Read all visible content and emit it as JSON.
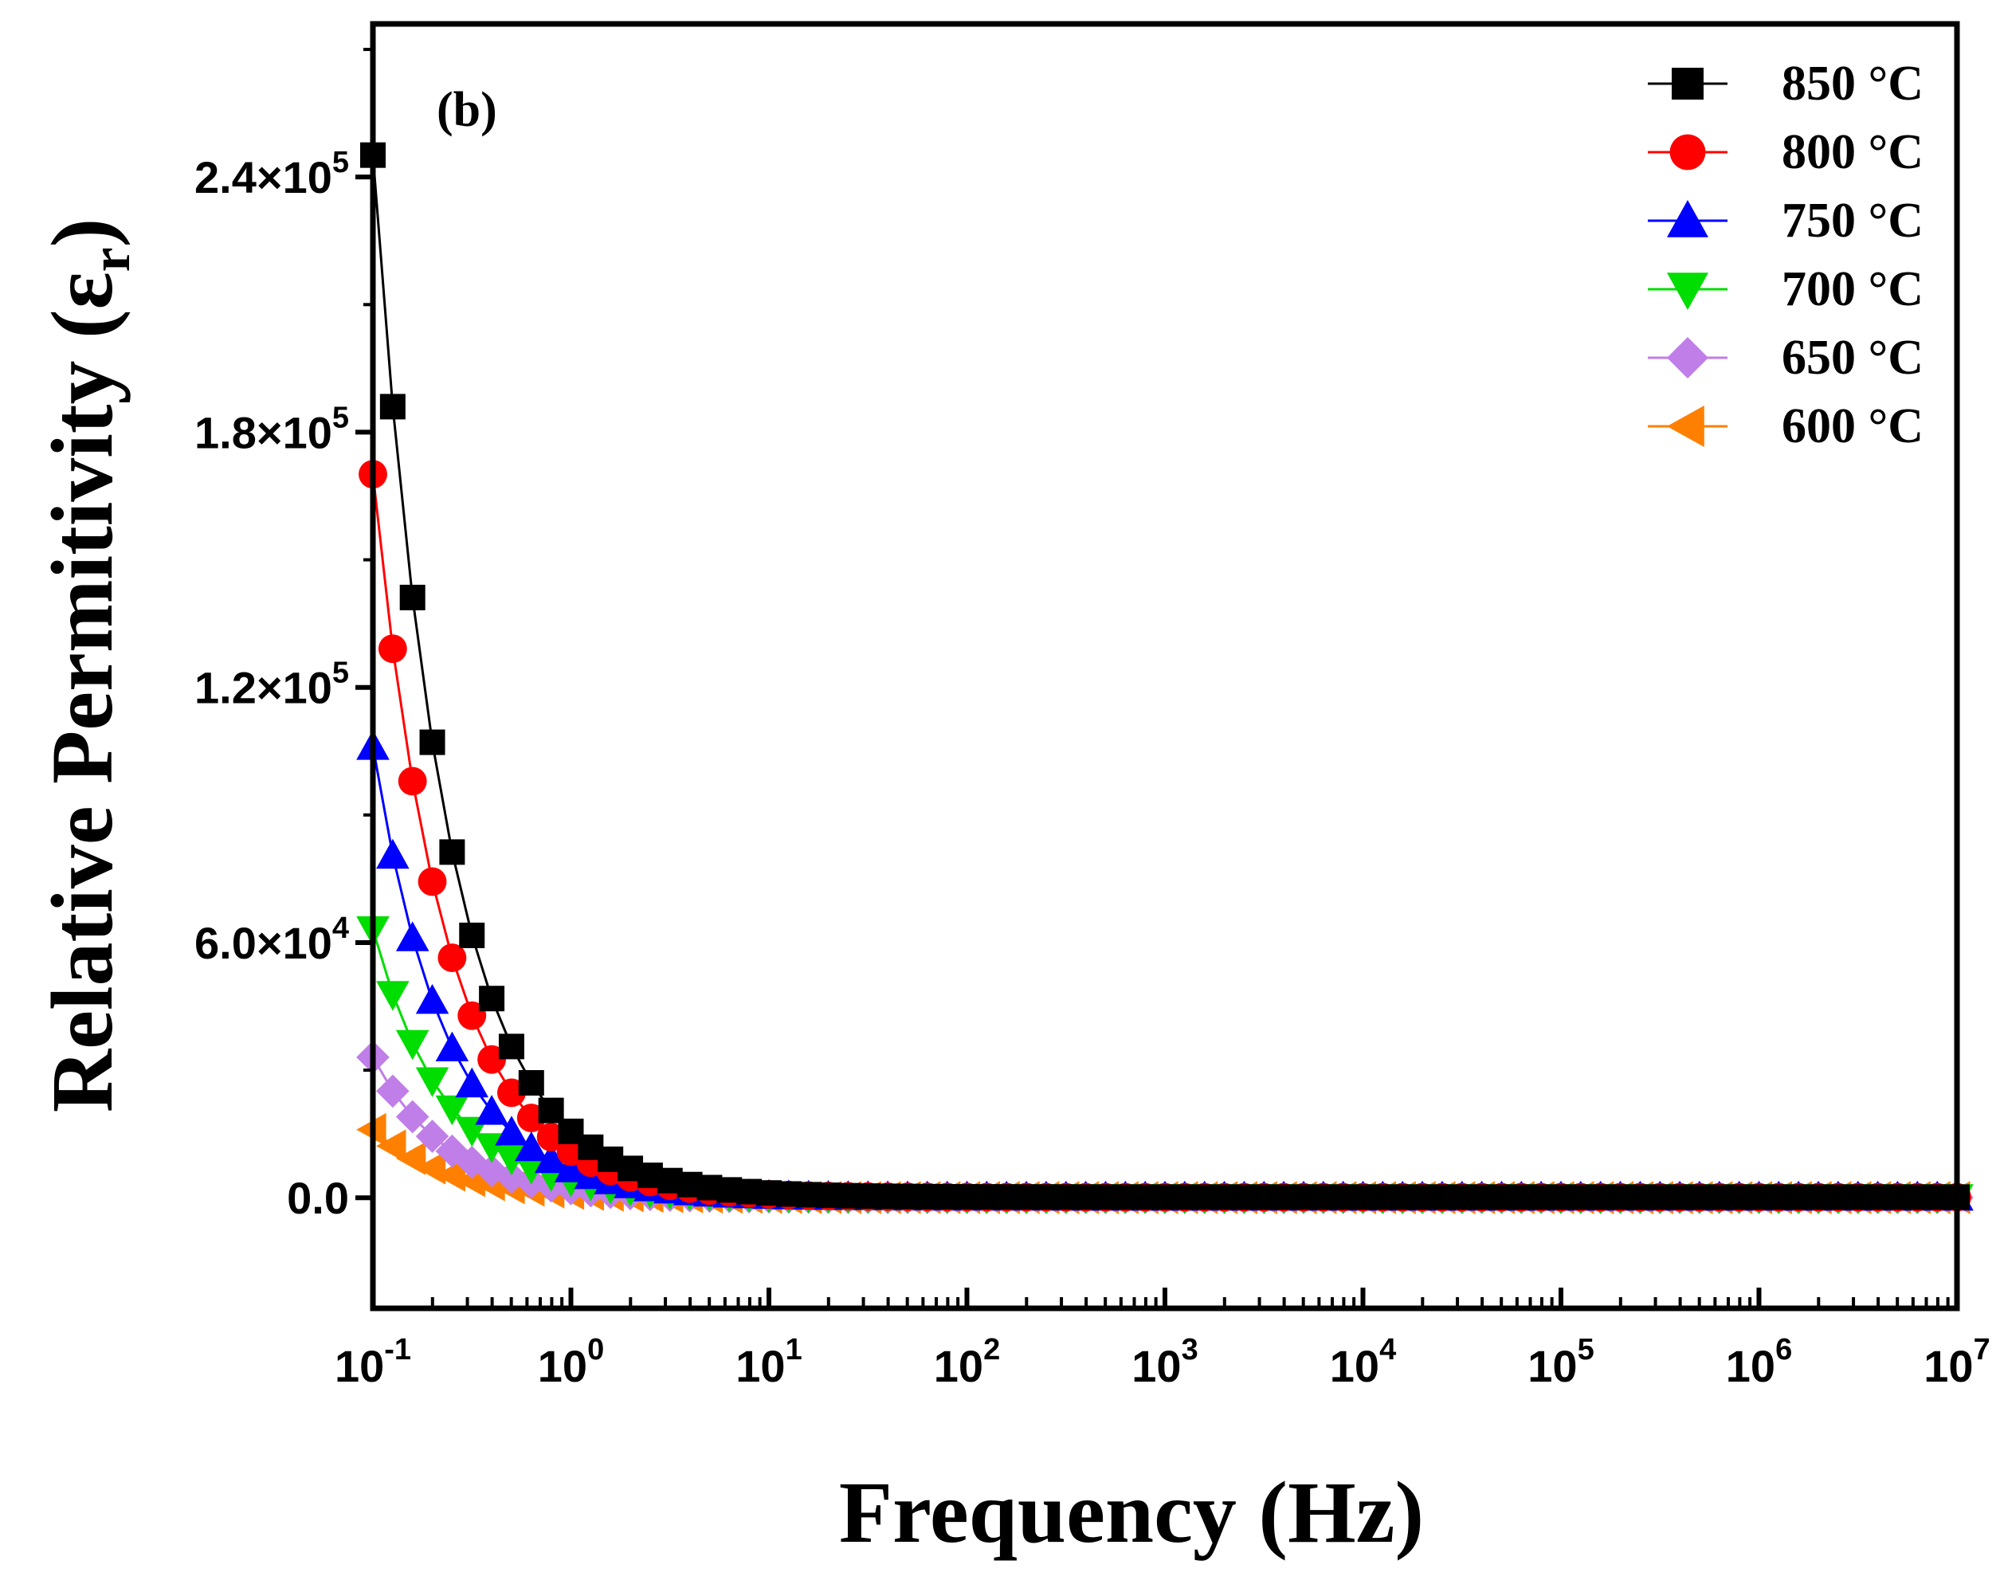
{
  "chart_data": {
    "type": "scatter",
    "panel_label": "(b)",
    "title": "",
    "xlabel": "Frequency (Hz)",
    "ylabel_main": "Relative Permitivity (",
    "ylabel_symbol": "ε",
    "ylabel_sub": "r",
    "ylabel_close": ")",
    "x_scale": "log",
    "xlim": [
      0.1,
      10000000
    ],
    "ylim": [
      -26000,
      276000
    ],
    "x_ticks": [
      {
        "base": "10",
        "exp": "-1",
        "value": 0.1
      },
      {
        "base": "10",
        "exp": "0",
        "value": 1
      },
      {
        "base": "10",
        "exp": "1",
        "value": 10
      },
      {
        "base": "10",
        "exp": "2",
        "value": 100
      },
      {
        "base": "10",
        "exp": "3",
        "value": 1000
      },
      {
        "base": "10",
        "exp": "4",
        "value": 10000
      },
      {
        "base": "10",
        "exp": "5",
        "value": 100000
      },
      {
        "base": "10",
        "exp": "6",
        "value": 1000000
      },
      {
        "base": "10",
        "exp": "7",
        "value": 10000000
      }
    ],
    "y_ticks": [
      {
        "label": "0.0",
        "exp": "",
        "value": 0
      },
      {
        "label": "6.0×10",
        "exp": "4",
        "value": 60000
      },
      {
        "label": "1.2×10",
        "exp": "5",
        "value": 120000
      },
      {
        "label": "1.8×10",
        "exp": "5",
        "value": 180000
      },
      {
        "label": "2.4×10",
        "exp": "5",
        "value": 240000
      }
    ],
    "legend_position": "top-right",
    "grid": false,
    "series": [
      {
        "name": "850 °C",
        "color": "#000000",
        "marker": "square",
        "a": 245000,
        "n": 1.2,
        "c": 150
      },
      {
        "name": "800 °C",
        "color": "#ff0000",
        "marker": "circle",
        "a": 170000,
        "n": 1.2,
        "c": 120
      },
      {
        "name": "750 °C",
        "color": "#0000ff",
        "marker": "triangle-up",
        "a": 106000,
        "n": 1.2,
        "c": 90
      },
      {
        "name": "700 °C",
        "color": "#00dd00",
        "marker": "triangle-down",
        "a": 63000,
        "n": 1.2,
        "c": 60
      },
      {
        "name": "650 °C",
        "color": "#c07ee8",
        "marker": "diamond",
        "a": 33000,
        "n": 1.2,
        "c": 40
      },
      {
        "name": "600 °C",
        "color": "#ff8000",
        "marker": "triangle-left",
        "a": 16000,
        "n": 1.2,
        "c": 30
      }
    ],
    "points_per_decade": 10
  }
}
